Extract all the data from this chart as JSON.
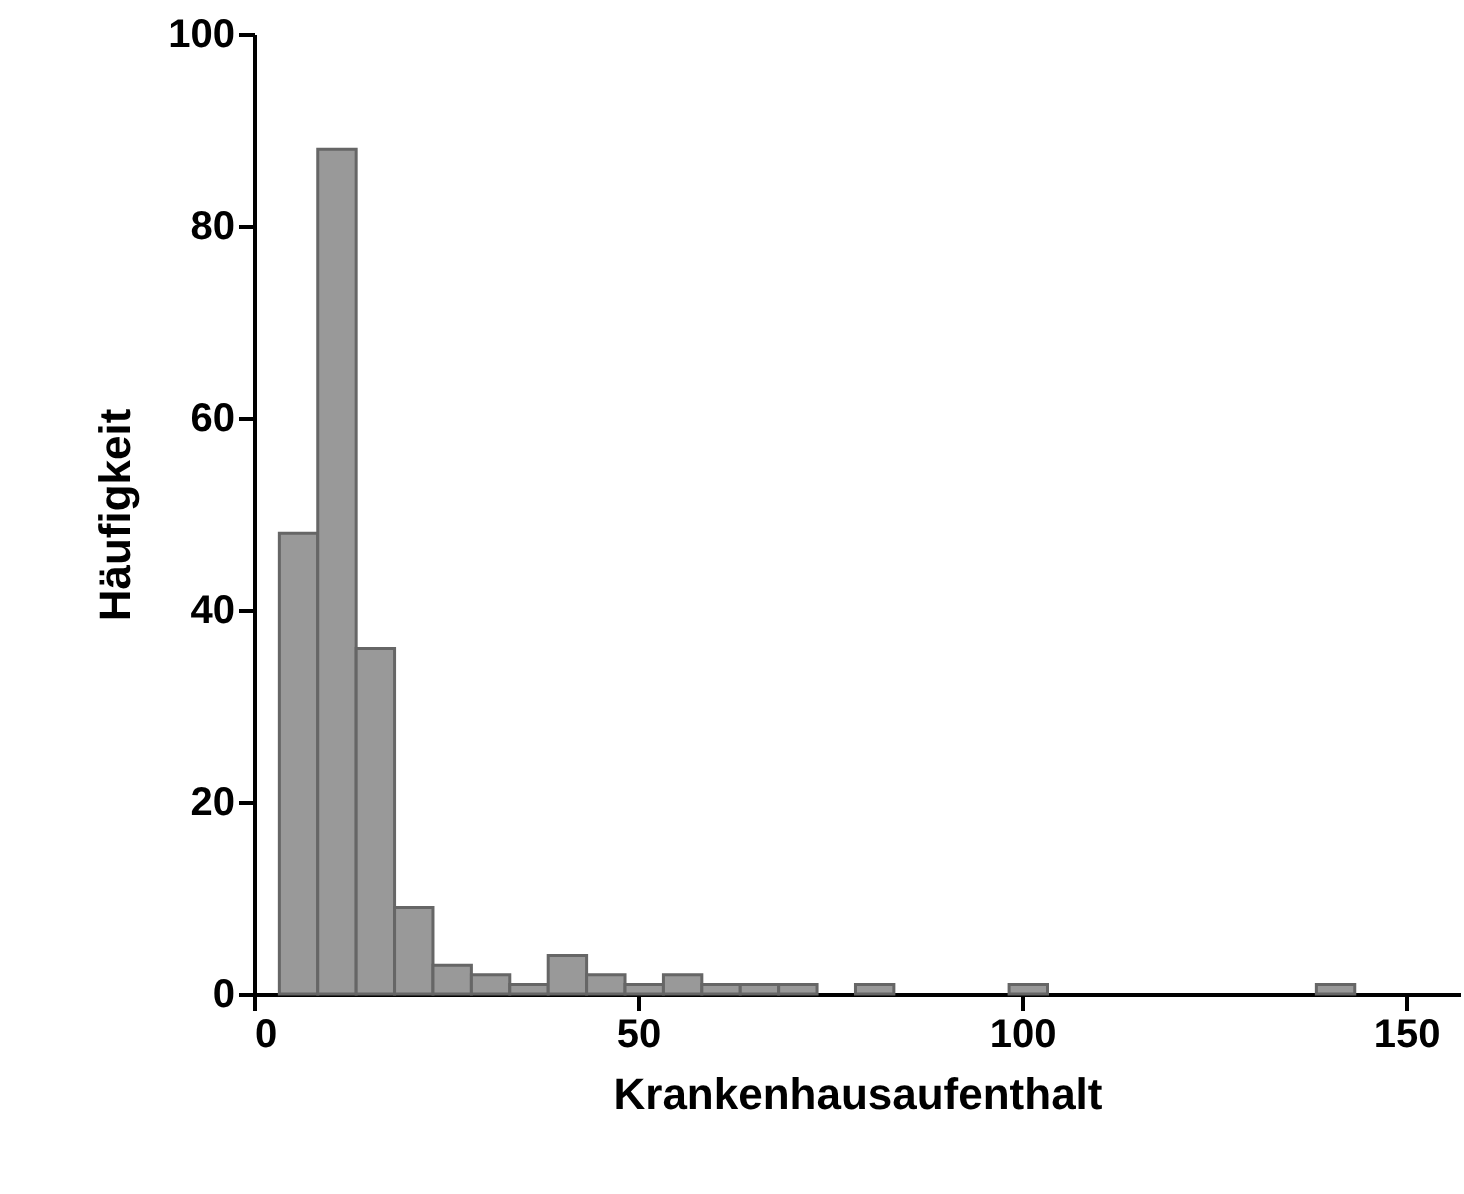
{
  "chart_data": {
    "type": "histogram",
    "xlabel": "Krankenhausaufenthalt",
    "ylabel": "Häufigkeit",
    "color": "#999999",
    "bins": [
      3.3,
      8.3,
      13.3,
      18.3,
      23.3,
      28.3,
      33.3,
      38.3,
      43.3,
      48.3,
      53.3,
      58.3,
      63.3,
      68.3,
      73.3,
      78.3,
      83.3,
      88.3,
      93.3,
      98.3,
      103.3,
      108.3,
      113.3,
      118.3,
      123.3,
      128.3,
      133.3,
      138.3,
      143.3
    ],
    "values": [
      48,
      88,
      36,
      9,
      3,
      2,
      1,
      4,
      2,
      1,
      2,
      1,
      1,
      1,
      0,
      1,
      0,
      0,
      0,
      1,
      0,
      0,
      0,
      0,
      0,
      0,
      0,
      1
    ],
    "xlim": [
      0,
      157
    ],
    "xticks": [
      0,
      50,
      100,
      150
    ],
    "ylim": [
      0,
      100
    ],
    "yticks": [
      0,
      20,
      40,
      60,
      80,
      100
    ],
    "grid": false
  }
}
